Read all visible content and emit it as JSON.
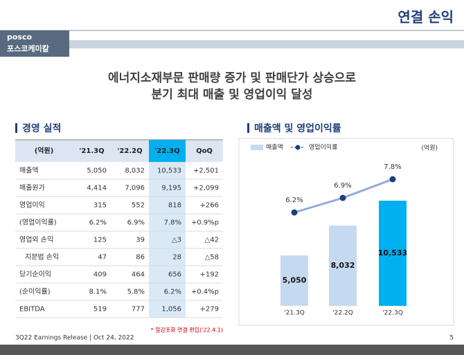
{
  "header": {
    "title": "연결 손익",
    "logo_top": "posco",
    "logo_bottom": "포스코케미칼"
  },
  "headline": [
    "에너지소재부문 판매량 증가 및 판매단가 상승으로",
    "분기 최대 매출 및 영업이익 달성"
  ],
  "table": {
    "title": "경영 실적",
    "columns": [
      "(억원)",
      "'21.3Q",
      "'22.2Q",
      "'22.3Q",
      "QoQ"
    ],
    "rows": [
      [
        "매출액",
        "5,050",
        "8,032",
        "10,533",
        "+2,501"
      ],
      [
        "매출원가",
        "4,414",
        "7,096",
        "9,195",
        "+2,099"
      ],
      [
        "영업이익",
        "315",
        "552",
        "818",
        "+266"
      ],
      [
        "(영업이익률)",
        "6.2%",
        "6.9%",
        "7.8%",
        "+0.9%p"
      ],
      [
        "영업외 손익",
        "125",
        "39",
        "△3",
        "△42"
      ],
      [
        "지분법 손익",
        "47",
        "86",
        "28",
        "△58"
      ],
      [
        "당기순이익",
        "409",
        "464",
        "656",
        "+192"
      ],
      [
        "(순이익률)",
        "8.1%",
        "5.8%",
        "6.2%",
        "+0.4%p"
      ],
      [
        "EBITDA",
        "519",
        "777",
        "1,056",
        "+279"
      ]
    ],
    "footnote": "* 철강포화 연결 편입('22.4.1)"
  },
  "chart_data": {
    "type": "bar",
    "title": "매출액 및 영업이익률",
    "unit": "(억원)",
    "categories": [
      "'21.3Q",
      "'22.2Q",
      "'22.3Q"
    ],
    "series": [
      {
        "name": "매출액",
        "type": "bar",
        "colors": [
          "#c5d9f1",
          "#c5d9f1",
          "#00b0f0"
        ],
        "values": [
          5050,
          8032,
          10533
        ],
        "value_labels": [
          "5,050",
          "8,032",
          "10,533"
        ]
      },
      {
        "name": "영업이익률",
        "type": "line",
        "color": "#1f3f7a",
        "values": [
          6.2,
          6.9,
          7.8
        ],
        "value_labels": [
          "6.2%",
          "6.9%",
          "7.8%"
        ]
      }
    ]
  },
  "footer": {
    "text": "3Q22 Earnings Release | Oct 24, 2022",
    "page": "5"
  }
}
